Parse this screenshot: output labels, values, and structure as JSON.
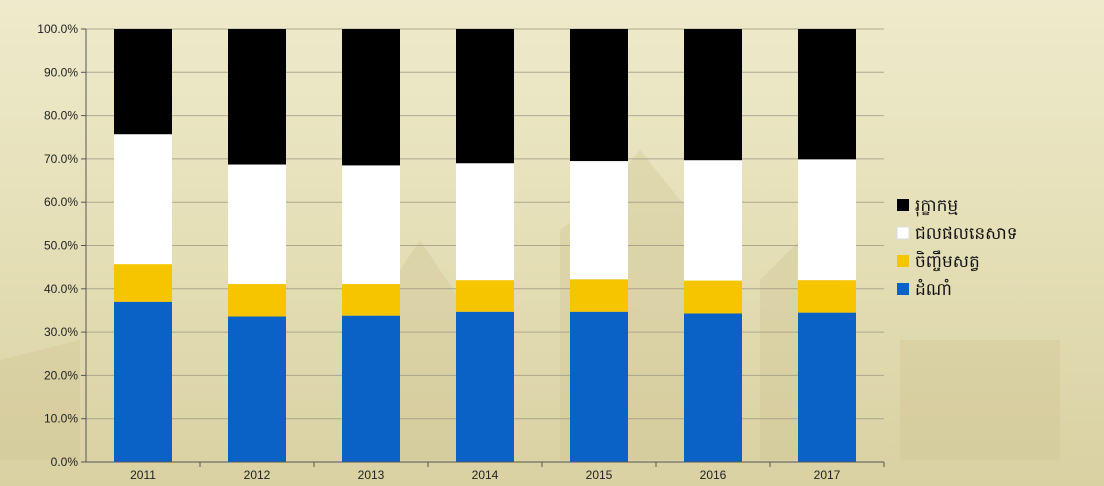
{
  "chart_data": {
    "type": "bar",
    "stacked": true,
    "title": "",
    "xlabel": "",
    "ylabel": "",
    "categories": [
      "2011",
      "2012",
      "2013",
      "2014",
      "2015",
      "2016",
      "2017"
    ],
    "ylim": [
      0,
      100
    ],
    "yticks": [
      "0.0%",
      "10.0%",
      "20.0%",
      "30.0%",
      "40.0%",
      "50.0%",
      "60.0%",
      "70.0%",
      "80.0%",
      "90.0%",
      "100.0%"
    ],
    "grid": true,
    "legend_position": "right",
    "series": [
      {
        "name": "ដំណាំ",
        "color": "#0a62c6",
        "values": [
          37.0,
          33.6,
          33.8,
          34.7,
          34.7,
          34.3,
          34.5
        ]
      },
      {
        "name": "ចិញ្ចឹមសត្វ",
        "color": "#f7c500",
        "values": [
          8.7,
          7.5,
          7.3,
          7.3,
          7.5,
          7.6,
          7.5
        ]
      },
      {
        "name": "ជលផលនេសាទ",
        "color": "#ffffff",
        "values": [
          30.0,
          27.6,
          27.4,
          27.0,
          27.3,
          27.8,
          27.9
        ]
      },
      {
        "name": "រុក្ខាកម្ម",
        "color": "#000000",
        "values": [
          24.3,
          31.3,
          31.5,
          31.0,
          30.5,
          30.3,
          30.1
        ]
      }
    ]
  }
}
